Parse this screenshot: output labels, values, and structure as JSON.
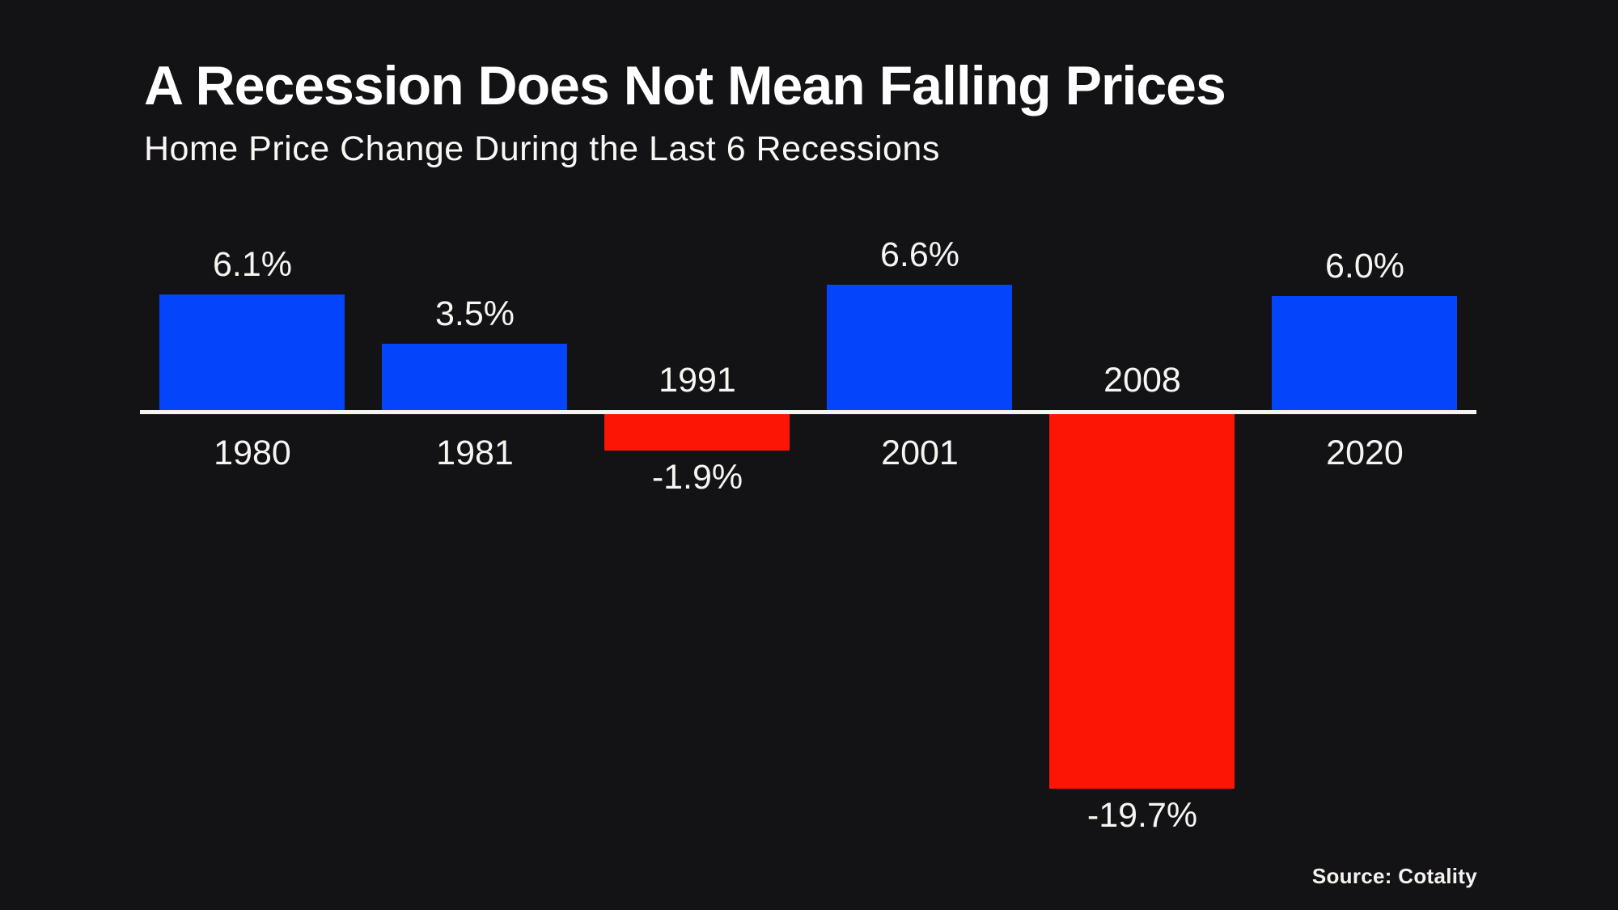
{
  "colors": {
    "background": "#131316",
    "positive_bar": "#0444fb",
    "negative_bar": "#fc1505",
    "axis_line": "#f7f5f0",
    "label_text": "#f7f5f1",
    "title_text": "#ffffff"
  },
  "chart_data": {
    "type": "bar",
    "title": "A Recession Does Not Mean Falling Prices",
    "subtitle": "Home Price Change During the Last 6 Recessions",
    "categories": [
      "1980",
      "1981",
      "1991",
      "2001",
      "2008",
      "2020"
    ],
    "values": [
      6.1,
      3.5,
      -1.9,
      6.6,
      -19.7,
      6.0
    ],
    "value_labels": [
      "6.1%",
      "3.5%",
      "-1.9%",
      "6.6%",
      "-19.7%",
      "6.0%"
    ],
    "unit": "%",
    "baseline": 0,
    "ylim": [
      -19.7,
      6.6
    ],
    "grid": false,
    "legend": false,
    "y_axis_hidden": true,
    "bar_color_positive": "#0444fb",
    "bar_color_negative": "#fc1505",
    "label_position_positive": "value above bar, year below axis",
    "label_position_negative": "year above axis, value below bar",
    "source": "Source: Cotality"
  }
}
